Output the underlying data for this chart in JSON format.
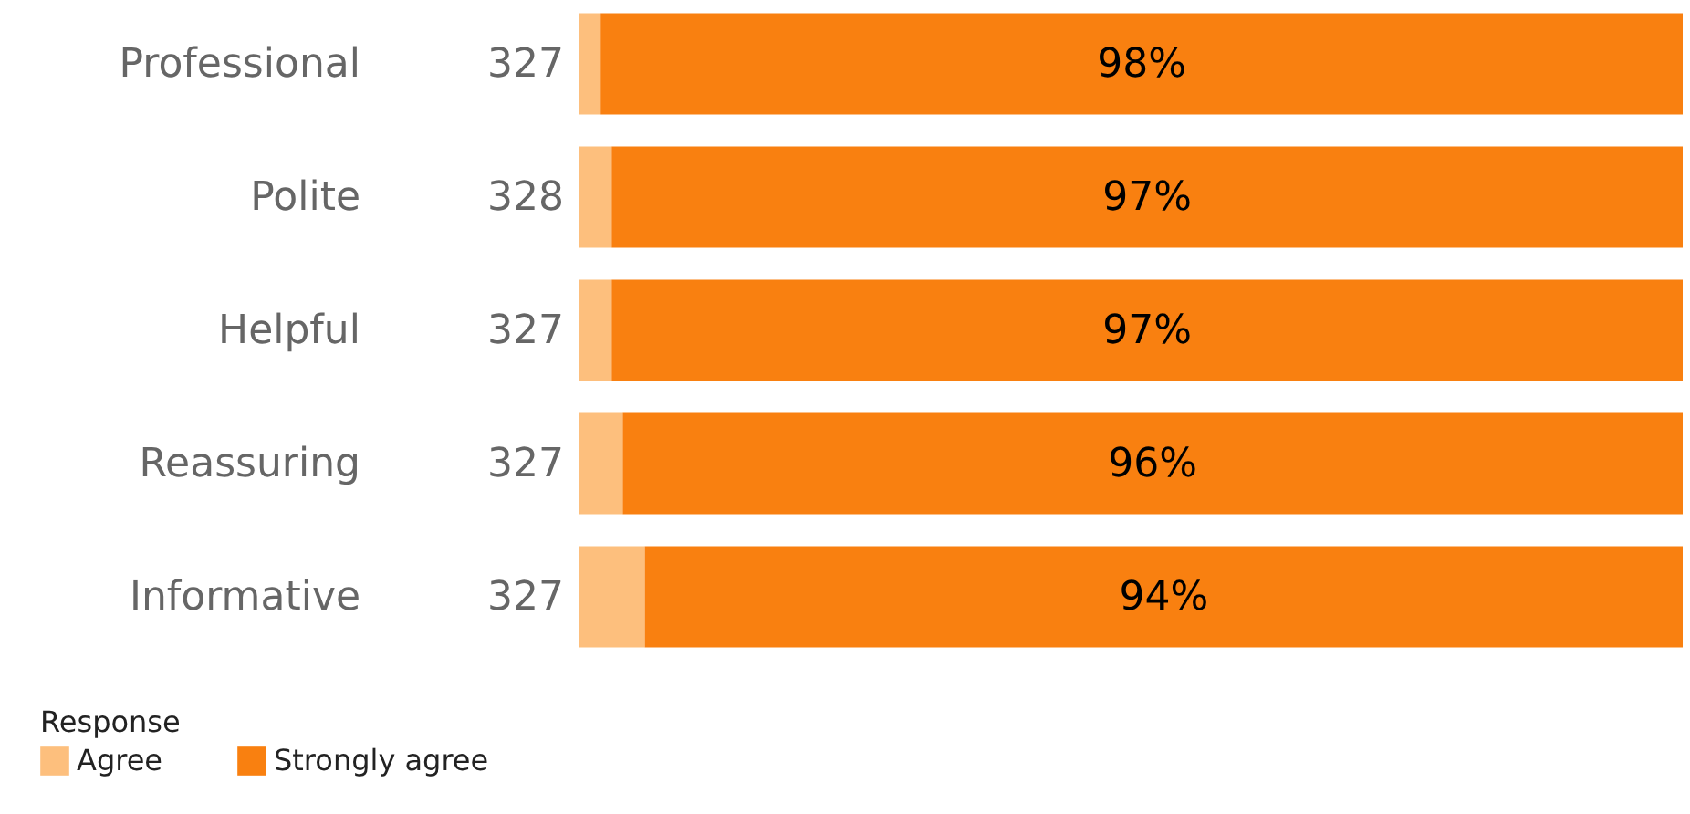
{
  "chart_data": {
    "type": "bar",
    "orientation": "horizontal",
    "stacked": true,
    "legend": "bottom left",
    "legend_title": "Response",
    "categories": [
      "Professional",
      "Polite",
      "Helpful",
      "Reassuring",
      "Informative"
    ],
    "series": [
      {
        "name": "Agree",
        "color": "#fdbf7d",
        "values": [
          2,
          3,
          3,
          4,
          6
        ]
      },
      {
        "name": "Strongly agree",
        "color": "#f98010",
        "values": [
          98,
          97,
          97,
          96,
          94
        ],
        "value_labels": [
          "98%",
          "97%",
          "97%",
          "96%",
          "94%"
        ]
      }
    ],
    "annotations": [
      "327",
      "328",
      "327",
      "327",
      "327"
    ]
  }
}
